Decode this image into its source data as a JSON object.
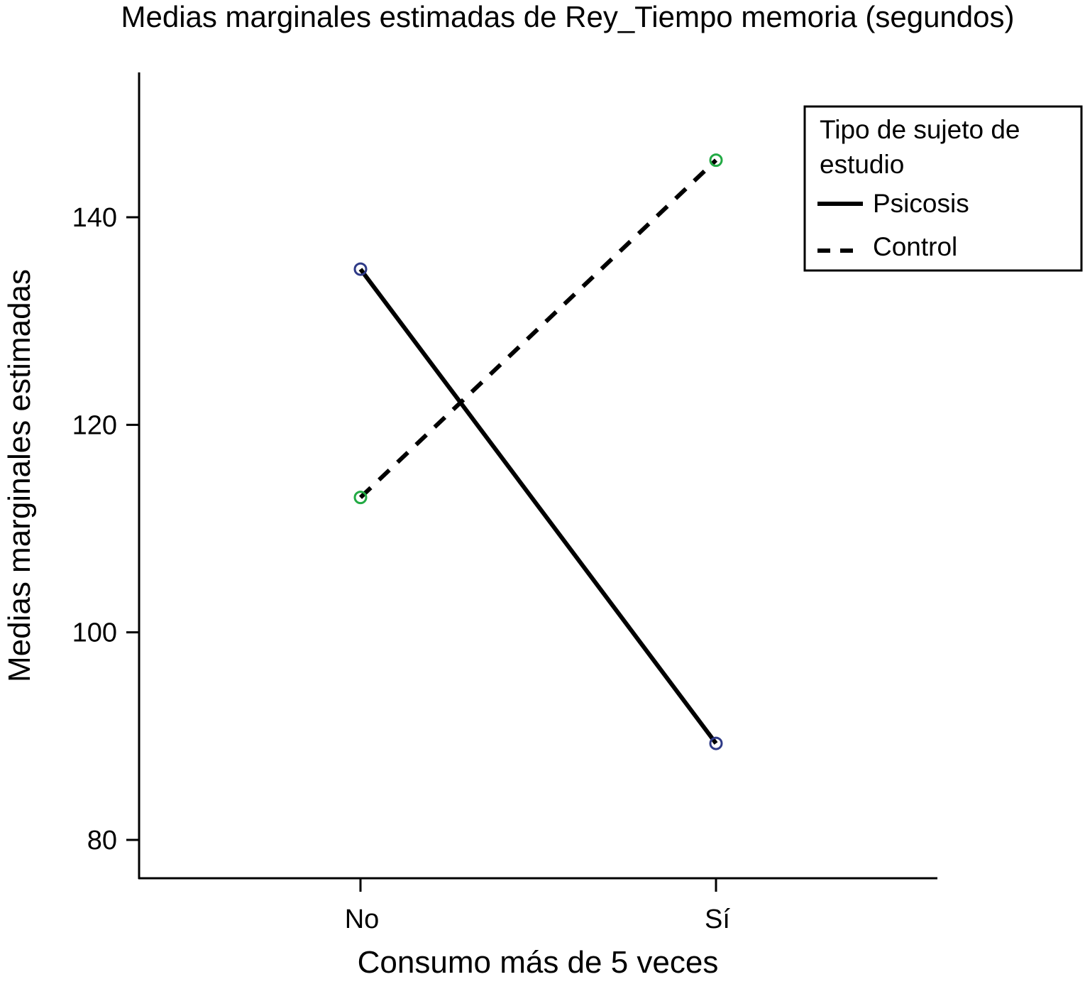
{
  "chart_data": {
    "type": "line",
    "title": "Medias marginales estimadas de Rey_Tiempo memoria (segundos)",
    "xlabel": "Consumo más de 5 veces",
    "ylabel": "Medias marginales estimadas",
    "categories": [
      "No",
      "Sí"
    ],
    "yticks": [
      80,
      100,
      120,
      140
    ],
    "ylim": [
      76.3,
      154
    ],
    "grid": false,
    "legend": {
      "title": "Tipo de sujeto de estudio",
      "title_lines": [
        "Tipo de sujeto de",
        "estudio"
      ],
      "position": "top-right"
    },
    "series": [
      {
        "name": "Psicosis",
        "values": [
          135,
          89.3
        ],
        "line_style": "solid",
        "line_color": "#000000",
        "marker_color": "#2e3a87"
      },
      {
        "name": "Control",
        "values": [
          113,
          145.5
        ],
        "line_style": "dashed",
        "line_color": "#000000",
        "marker_color": "#22aa44"
      }
    ]
  }
}
